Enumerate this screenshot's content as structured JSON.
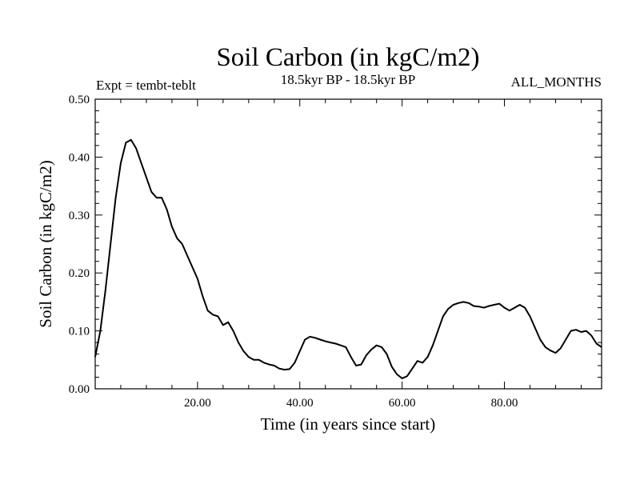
{
  "chart_data": {
    "type": "line",
    "title": "Soil Carbon (in kgC/m2)",
    "subtitle": "18.5kyr BP - 18.5kyr BP",
    "left_note": "Expt = tembt-teblt",
    "right_note": "ALL_MONTHS",
    "xlabel": "Time (in years since start)",
    "ylabel": "Soil Carbon (in kgC/m2)",
    "xlim": [
      0,
      99
    ],
    "ylim": [
      0,
      0.5
    ],
    "x_ticks": [
      20,
      40,
      60,
      80
    ],
    "x_tick_labels": [
      "20.00",
      "40.00",
      "60.00",
      "80.00"
    ],
    "y_ticks": [
      0,
      0.1,
      0.2,
      0.3,
      0.4,
      0.5
    ],
    "y_tick_labels": [
      "0.00",
      "0.10",
      "0.20",
      "0.30",
      "0.40",
      "0.50"
    ],
    "grid": false,
    "series": [
      {
        "color": "#000000",
        "x": [
          0,
          1,
          2,
          3,
          4,
          5,
          6,
          7,
          8,
          9,
          10,
          11,
          12,
          13,
          14,
          15,
          16,
          17,
          18,
          19,
          20,
          21,
          22,
          23,
          24,
          25,
          26,
          27,
          28,
          29,
          30,
          31,
          32,
          33,
          34,
          35,
          36,
          37,
          38,
          39,
          40,
          41,
          42,
          43,
          44,
          45,
          46,
          47,
          48,
          49,
          50,
          51,
          52,
          53,
          54,
          55,
          56,
          57,
          58,
          59,
          60,
          61,
          62,
          63,
          64,
          65,
          66,
          67,
          68,
          69,
          70,
          71,
          72,
          73,
          74,
          75,
          76,
          77,
          78,
          79,
          80,
          81,
          82,
          83,
          84,
          85,
          86,
          87,
          88,
          89,
          90,
          91,
          92,
          93,
          94,
          95,
          96,
          97,
          98,
          99
        ],
        "values": [
          0.055,
          0.1,
          0.17,
          0.25,
          0.33,
          0.39,
          0.425,
          0.43,
          0.415,
          0.39,
          0.365,
          0.34,
          0.33,
          0.33,
          0.31,
          0.28,
          0.26,
          0.25,
          0.23,
          0.21,
          0.19,
          0.16,
          0.135,
          0.128,
          0.125,
          0.11,
          0.115,
          0.1,
          0.08,
          0.065,
          0.055,
          0.05,
          0.05,
          0.045,
          0.042,
          0.04,
          0.035,
          0.033,
          0.034,
          0.045,
          0.065,
          0.085,
          0.09,
          0.088,
          0.085,
          0.082,
          0.08,
          0.078,
          0.075,
          0.072,
          0.055,
          0.04,
          0.042,
          0.058,
          0.068,
          0.075,
          0.072,
          0.06,
          0.038,
          0.025,
          0.018,
          0.022,
          0.035,
          0.048,
          0.045,
          0.055,
          0.075,
          0.1,
          0.125,
          0.138,
          0.145,
          0.148,
          0.15,
          0.148,
          0.143,
          0.142,
          0.14,
          0.143,
          0.145,
          0.147,
          0.14,
          0.135,
          0.14,
          0.145,
          0.14,
          0.125,
          0.105,
          0.085,
          0.072,
          0.066,
          0.062,
          0.07,
          0.085,
          0.1,
          0.102,
          0.098,
          0.1,
          0.092,
          0.078,
          0.072
        ]
      }
    ]
  }
}
